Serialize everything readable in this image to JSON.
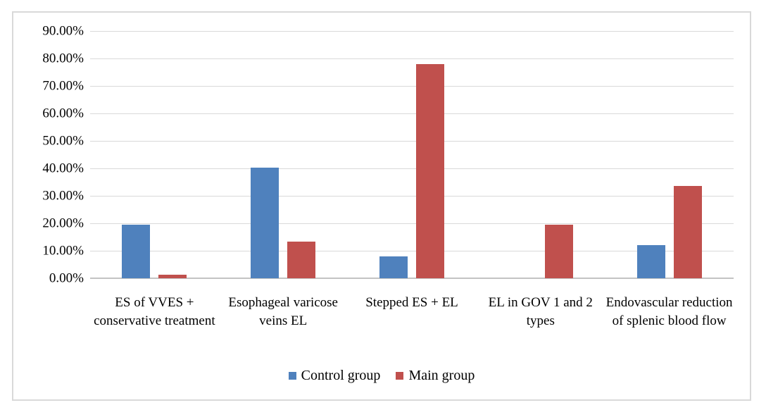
{
  "page": {
    "background": "#ffffff",
    "border_color": "#d9d9d9"
  },
  "chart_data": {
    "type": "bar",
    "title": "",
    "xlabel": "",
    "ylabel": "",
    "categories": [
      "ES of VVES + conservative treatment",
      "Esophageal varicose veins EL",
      "Stepped ES + EL",
      "EL in GOV 1 and 2 types",
      "Endovascular reduction of splenic blood flow"
    ],
    "series": [
      {
        "name": "Control group",
        "color": "#4F81BD",
        "values": [
          19.5,
          40.3,
          7.9,
          0,
          12.0
        ]
      },
      {
        "name": "Main group",
        "color": "#C0504D",
        "values": [
          1.2,
          13.4,
          78.0,
          19.4,
          33.6
        ]
      }
    ],
    "ylim": [
      0,
      90
    ],
    "ytick_step": 10,
    "ytick_labels": [
      "0.00%",
      "10.00%",
      "20.00%",
      "30.00%",
      "40.00%",
      "50.00%",
      "60.00%",
      "70.00%",
      "80.00%",
      "90.00%"
    ],
    "grid": true,
    "gridline_color": "#d9d9d9",
    "axis_line_color": "#c3c3c3",
    "legend_position": "bottom"
  }
}
